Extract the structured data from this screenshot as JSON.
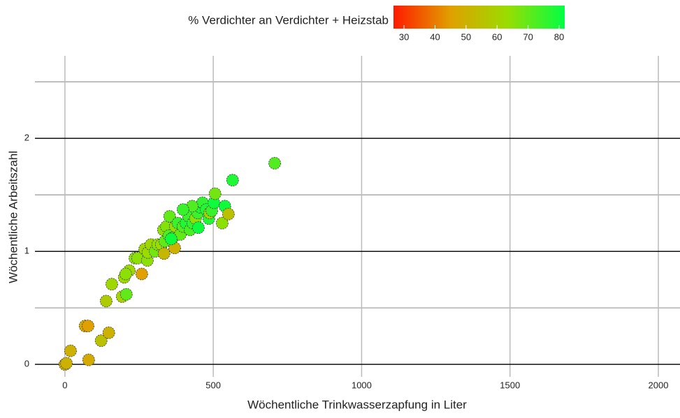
{
  "chart_data": {
    "type": "scatter",
    "x_label": "Wöchentliche Trinkwasserzapfung in Liter",
    "y_label": "Wöchentliche Arbeitszahl",
    "legend_title": "% Verdichter an Verdichter + Heizstab",
    "xlim": [
      -101,
      2073
    ],
    "ylim": [
      -0.11,
      2.73
    ],
    "xticks": [
      0,
      500,
      1000,
      1500,
      2000
    ],
    "yticks": [
      0,
      1,
      2
    ],
    "yminor": [
      0.5,
      1.5,
      2.5
    ],
    "color_scale": {
      "limits": [
        26.6,
        81.8
      ],
      "colors": [
        "#ff1a00",
        "#e0a000",
        "#99dd00",
        "#00ff44"
      ],
      "ticks": [
        30,
        40,
        50,
        60,
        70,
        80
      ]
    },
    "grid": true,
    "x": [
      0,
      5,
      19,
      68,
      78,
      80,
      122,
      148,
      139,
      158,
      193,
      200,
      207,
      217,
      205,
      259,
      236,
      245,
      269,
      278,
      280,
      290,
      304,
      313,
      325,
      334,
      337,
      332,
      342,
      351,
      353,
      363,
      370,
      372,
      381,
      389,
      398,
      408,
      417,
      422,
      431,
      440,
      448,
      457,
      464,
      450,
      476,
      485,
      488,
      495,
      502,
      506,
      530,
      539,
      551,
      565,
      707,
      429,
      398,
      358
    ],
    "values": [
      0,
      0.01,
      0.12,
      0.34,
      0.34,
      0.04,
      0.21,
      0.28,
      0.56,
      0.71,
      0.6,
      0.77,
      0.62,
      0.83,
      0.8,
      0.8,
      0.94,
      0.94,
      1.02,
      0.92,
      0.99,
      1.06,
      1.0,
      1.06,
      1.06,
      0.98,
      1.09,
      1.19,
      1.22,
      1.14,
      1.31,
      1.12,
      1.03,
      1.22,
      1.25,
      1.15,
      1.22,
      1.25,
      1.31,
      1.19,
      1.25,
      1.29,
      1.34,
      1.39,
      1.43,
      1.21,
      1.37,
      1.29,
      1.34,
      1.36,
      1.43,
      1.51,
      1.25,
      1.4,
      1.33,
      1.63,
      1.78,
      1.4,
      1.37,
      1.11
    ],
    "color_values": [
      50,
      50,
      50,
      48,
      45,
      48,
      55,
      50,
      58,
      62,
      60,
      62,
      70,
      62,
      65,
      45,
      65,
      65,
      62,
      65,
      63,
      62,
      68,
      65,
      63,
      52,
      70,
      65,
      66,
      72,
      70,
      75,
      50,
      63,
      75,
      70,
      72,
      78,
      75,
      73,
      76,
      65,
      75,
      78,
      76,
      80,
      78,
      78,
      60,
      75,
      80,
      68,
      65,
      80,
      55,
      78,
      72,
      72,
      75,
      80
    ]
  }
}
